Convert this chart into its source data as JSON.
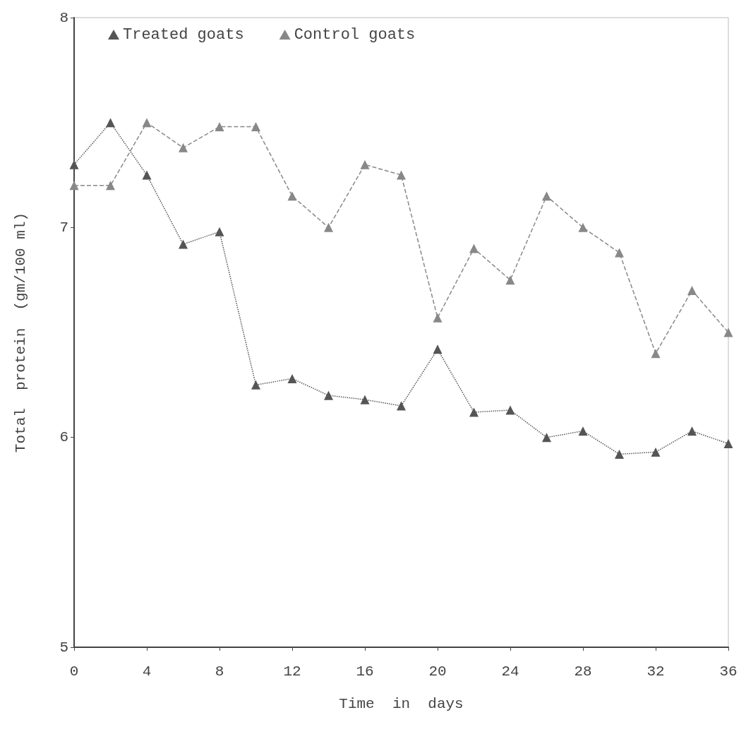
{
  "chart_data": {
    "type": "line",
    "xlabel": "Time  in  days",
    "ylabel": "Total  protein  (gm/100 ml)",
    "x": [
      0,
      2,
      4,
      6,
      8,
      10,
      12,
      14,
      16,
      18,
      20,
      22,
      24,
      26,
      28,
      30,
      32,
      34,
      36
    ],
    "series": [
      {
        "name": "Treated goats",
        "color": "#555555",
        "line_style": "dotted",
        "values": [
          7.3,
          7.5,
          7.25,
          6.92,
          6.98,
          6.25,
          6.28,
          6.2,
          6.18,
          6.15,
          6.42,
          6.12,
          6.13,
          6.0,
          6.03,
          5.92,
          5.93,
          6.03,
          5.97
        ]
      },
      {
        "name": "Control goats",
        "color": "#888888",
        "line_style": "dashed",
        "values": [
          7.2,
          7.2,
          7.5,
          7.38,
          7.48,
          7.48,
          7.15,
          7.0,
          7.3,
          7.25,
          6.57,
          6.9,
          6.75,
          7.15,
          7.0,
          6.88,
          6.4,
          6.7,
          6.5
        ]
      }
    ],
    "xlim": [
      0,
      36
    ],
    "xticks": [
      0,
      4,
      8,
      12,
      16,
      20,
      24,
      28,
      32,
      36
    ],
    "ylim": [
      5,
      8
    ],
    "yticks": [
      5,
      6,
      7,
      8
    ],
    "marker": "triangle",
    "legend": "top left",
    "grid": false
  }
}
